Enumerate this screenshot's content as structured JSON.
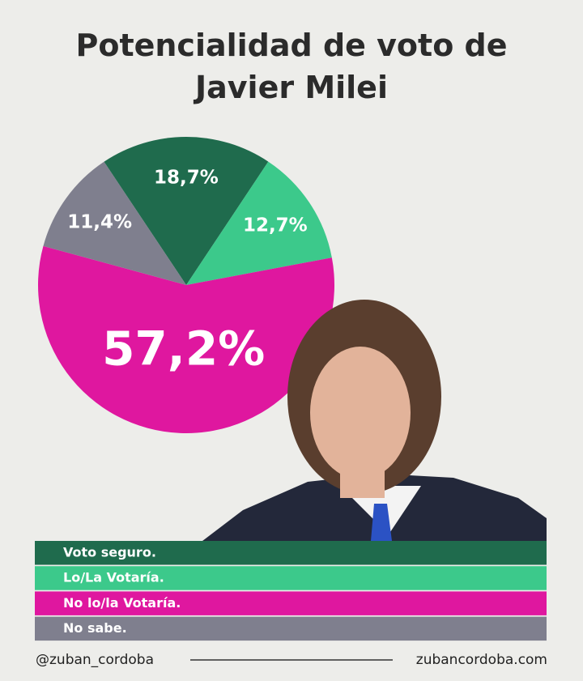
{
  "chart_data": {
    "type": "pie",
    "title": "Potencialidad de voto de Javier Milei",
    "categories": [
      "Voto seguro.",
      "Lo/La Votaría.",
      "No lo/la Votaría.",
      "No sabe."
    ],
    "values": [
      18.7,
      12.7,
      57.2,
      11.4
    ],
    "value_labels": [
      "18,7%",
      "12,7%",
      "57,2%",
      "11,4%"
    ],
    "colors": [
      "#1f6b4d",
      "#3cc98b",
      "#df179f",
      "#7f7f8e"
    ],
    "source_handle": "@zuban_cordoba",
    "website": "zubancordoba.com"
  }
}
